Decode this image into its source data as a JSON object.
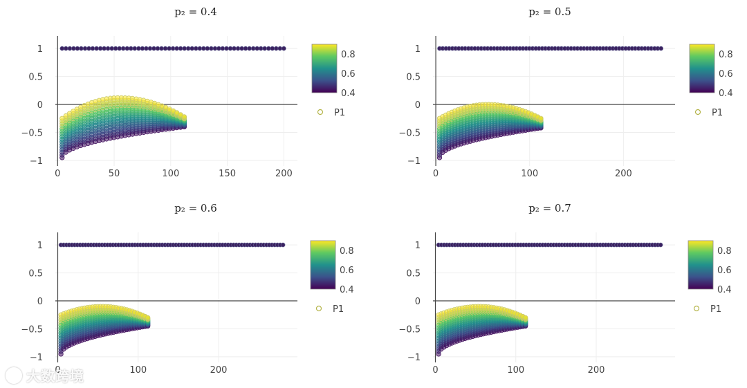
{
  "watermark": "大数跨境",
  "legend_label": "P1",
  "colorbar_ticks": [
    "0.8",
    "0.6",
    "0.4"
  ],
  "colorscale": [
    "#440154",
    "#3b528b",
    "#21918c",
    "#5ec962",
    "#fde725"
  ],
  "chart_data": [
    {
      "type": "scatter",
      "title": "p₂ = 0.4",
      "series": [
        {
          "name": "P1",
          "description": "points at y=1 for x 4..200, plus colored arc band below zero"
        }
      ],
      "top_line": {
        "y": 1,
        "x_range": [
          4,
          200
        ]
      },
      "arc": {
        "x_range": [
          4,
          112
        ],
        "peak_x": 55,
        "y_bottom_left": -0.95,
        "y_top_peak": 0.12,
        "y_top_right": -0.22,
        "y_bottom_right": -0.4
      },
      "xlim": [
        -2,
        212
      ],
      "ylim": [
        -1.1,
        1.15
      ],
      "xticks": [
        "0",
        "50",
        "100",
        "150",
        "200"
      ],
      "xtick_values": [
        0,
        50,
        100,
        150,
        200
      ],
      "yticks": [
        "1",
        "0.5",
        "0",
        "−0.5",
        "−1"
      ],
      "ytick_values": [
        1,
        0.5,
        0,
        -0.5,
        -1
      ],
      "colorbar_range": [
        0.4,
        0.9
      ]
    },
    {
      "type": "scatter",
      "title": "p₂ = 0.5",
      "series": [
        {
          "name": "P1"
        }
      ],
      "top_line": {
        "y": 1,
        "x_range": [
          4,
          240
        ]
      },
      "arc": {
        "x_range": [
          4,
          112
        ],
        "peak_x": 55,
        "y_bottom_left": -0.95,
        "y_top_peak": 0.0,
        "y_top_right": -0.25,
        "y_bottom_right": -0.42
      },
      "xlim": [
        -3,
        255
      ],
      "ylim": [
        -1.1,
        1.15
      ],
      "xticks": [
        "0",
        "100",
        "200"
      ],
      "xtick_values": [
        0,
        100,
        200
      ],
      "yticks": [
        "1",
        "0.5",
        "0",
        "−0.5",
        "−1"
      ],
      "ytick_values": [
        1,
        0.5,
        0,
        -0.5,
        -1
      ],
      "colorbar_range": [
        0.4,
        0.9
      ]
    },
    {
      "type": "scatter",
      "title": "p₂ = 0.6",
      "series": [
        {
          "name": "P1"
        }
      ],
      "top_line": {
        "y": 1,
        "x_range": [
          4,
          280
        ]
      },
      "arc": {
        "x_range": [
          4,
          112
        ],
        "peak_x": 55,
        "y_bottom_left": -0.95,
        "y_top_peak": -0.1,
        "y_top_right": -0.3,
        "y_bottom_right": -0.45
      },
      "xlim": [
        -3,
        298
      ],
      "ylim": [
        -1.1,
        1.15
      ],
      "xticks": [
        "0",
        "100",
        "200"
      ],
      "xtick_values": [
        0,
        100,
        200
      ],
      "yticks": [
        "1",
        "0.5",
        "0",
        "−0.5",
        "−1"
      ],
      "ytick_values": [
        1,
        0.5,
        0,
        -0.5,
        -1
      ],
      "colorbar_range": [
        0.4,
        0.9
      ]
    },
    {
      "type": "scatter",
      "title": "p₂ = 0.7",
      "series": [
        {
          "name": "P1"
        }
      ],
      "top_line": {
        "y": 1,
        "x_range": [
          4,
          280
        ]
      },
      "arc": {
        "x_range": [
          4,
          112
        ],
        "peak_x": 55,
        "y_bottom_left": -0.95,
        "y_top_peak": -0.1,
        "y_top_right": -0.3,
        "y_bottom_right": -0.45
      },
      "xlim": [
        -3,
        298
      ],
      "ylim": [
        -1.1,
        1.15
      ],
      "xticks": [
        "0",
        "100",
        "200"
      ],
      "xtick_values": [
        0,
        100,
        200
      ],
      "yticks": [
        "1",
        "0.5",
        "0",
        "−0.5",
        "−1"
      ],
      "ytick_values": [
        1,
        0.5,
        0,
        -0.5,
        -1
      ],
      "colorbar_range": [
        0.4,
        0.9
      ]
    }
  ]
}
